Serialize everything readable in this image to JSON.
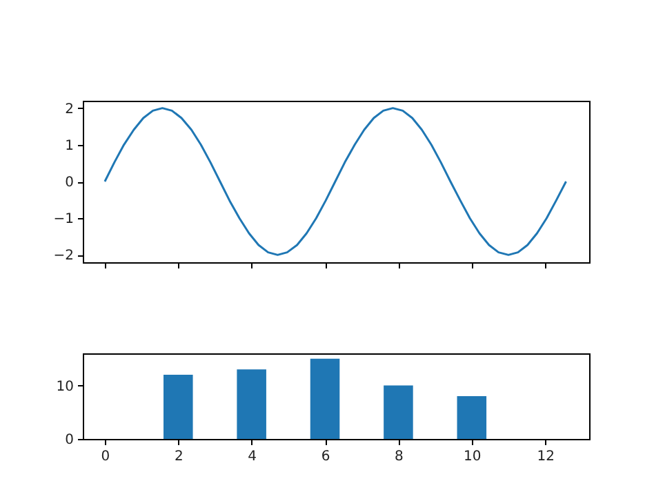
{
  "chart_data": [
    {
      "type": "line",
      "x": [
        0,
        0.26,
        0.52,
        0.79,
        1.05,
        1.31,
        1.57,
        1.83,
        2.09,
        2.36,
        2.62,
        2.88,
        3.14,
        3.4,
        3.67,
        3.93,
        4.19,
        4.45,
        4.71,
        4.97,
        5.24,
        5.5,
        5.76,
        6.02,
        6.28,
        6.54,
        6.81,
        7.07,
        7.33,
        7.59,
        7.85,
        8.12,
        8.38,
        8.64,
        8.9,
        9.16,
        9.42,
        9.69,
        9.95,
        10.21,
        10.47,
        10.73,
        11,
        11.26,
        11.52,
        11.78,
        12.04,
        12.3,
        12.57
      ],
      "series": [
        {
          "color": "#1f77b4",
          "values": [
            0,
            0.52,
            1,
            1.41,
            1.73,
            1.93,
            2,
            1.93,
            1.73,
            1.41,
            1,
            0.52,
            0,
            -0.52,
            -1,
            -1.41,
            -1.73,
            -1.93,
            -2,
            -1.93,
            -1.73,
            -1.41,
            -1,
            -0.52,
            0,
            0.52,
            1,
            1.41,
            1.73,
            1.93,
            2,
            1.93,
            1.73,
            1.41,
            1,
            0.52,
            0,
            -0.52,
            -1,
            -1.41,
            -1.73,
            -1.93,
            -2,
            -1.93,
            -1.73,
            -1.41,
            -1,
            -0.52,
            0
          ]
        }
      ],
      "xlim": [
        -0.6,
        13.2
      ],
      "xticks": [
        0,
        2,
        4,
        6,
        8,
        10,
        12
      ],
      "ylim": [
        -2.2,
        2.2
      ],
      "yticks": [
        -2,
        -1,
        0,
        1,
        2
      ],
      "tick_labels": "y",
      "grid": false
    },
    {
      "type": "bar",
      "x": [
        2,
        4,
        6,
        8,
        10
      ],
      "series": [
        {
          "color": "#1f77b4",
          "values": [
            12,
            13,
            15,
            10,
            8
          ]
        }
      ],
      "xlim": [
        -0.6,
        13.2
      ],
      "xticks": [
        0,
        2,
        4,
        6,
        8,
        10,
        12
      ],
      "ylim": [
        0,
        16
      ],
      "yticks": [
        0,
        10
      ],
      "grid": false
    }
  ]
}
